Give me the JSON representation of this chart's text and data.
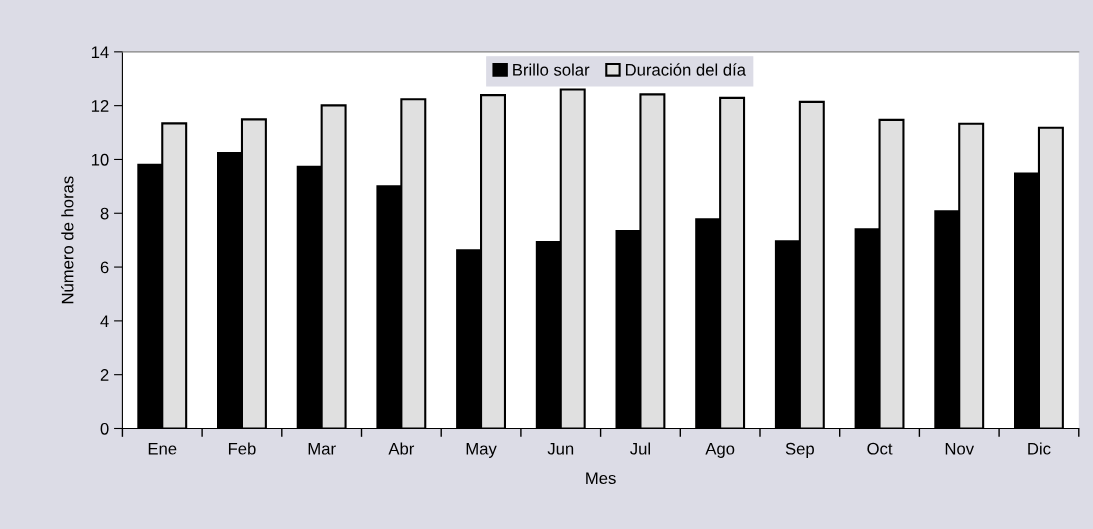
{
  "chart_data": {
    "type": "bar",
    "xlabel": "Mes",
    "ylabel": "Número de horas",
    "categories": [
      "Ene",
      "Feb",
      "Mar",
      "Abr",
      "May",
      "Jun",
      "Jul",
      "Ago",
      "Sep",
      "Oct",
      "Nov",
      "Dic"
    ],
    "series": [
      {
        "name": "Brillo solar",
        "color": "#000000",
        "values": [
          9.8,
          10.24,
          9.73,
          9.0,
          6.62,
          6.93,
          7.34,
          7.78,
          6.96,
          7.4,
          8.07,
          9.48
        ]
      },
      {
        "name": "Duración del día",
        "color": "#e0e0e0",
        "values": [
          11.34,
          11.49,
          12.01,
          12.24,
          12.39,
          12.6,
          12.42,
          12.29,
          12.14,
          11.47,
          11.33,
          11.18
        ]
      }
    ],
    "ylim": [
      0,
      14
    ],
    "yticks": [
      0,
      2,
      4,
      6,
      8,
      10,
      12,
      14
    ],
    "grid": false,
    "legend": "top"
  }
}
